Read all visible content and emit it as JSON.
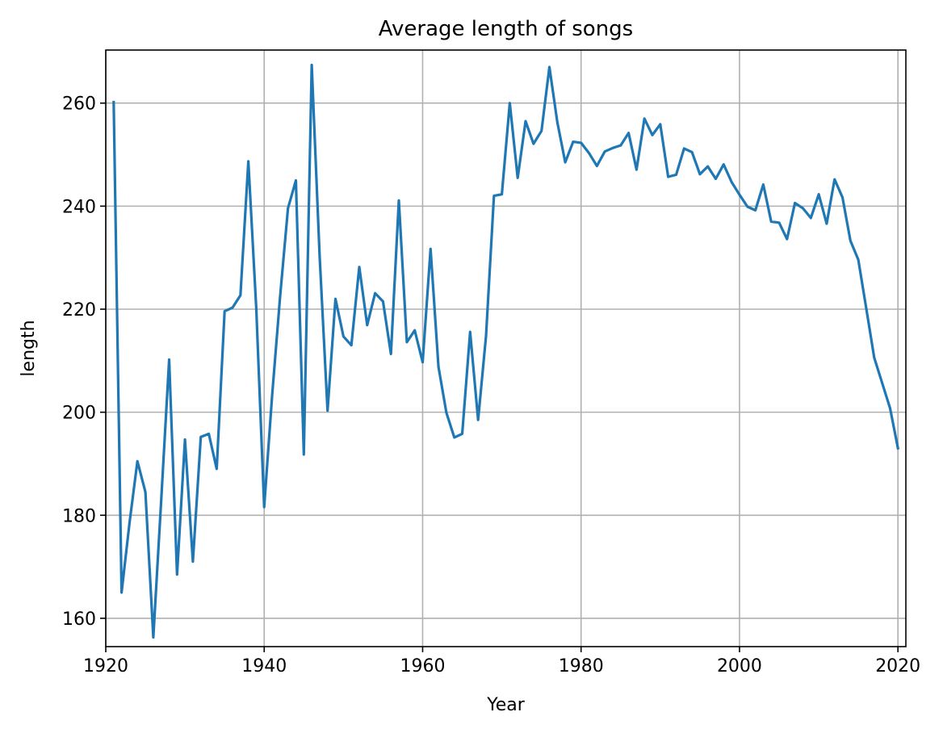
{
  "chart_data": {
    "type": "line",
    "title": "Average length of songs",
    "xlabel": "Year",
    "ylabel": "length",
    "xlim": [
      1920,
      2021
    ],
    "ylim": [
      154.5,
      270.3
    ],
    "xticks": [
      1920,
      1940,
      1960,
      1980,
      2000,
      2020
    ],
    "yticks": [
      160,
      180,
      200,
      220,
      240,
      260
    ],
    "grid": true,
    "legend": "none",
    "colors": {
      "line": "#1f77b4",
      "grid": "#b0b0b0",
      "axes": "#000000"
    },
    "series": [
      {
        "x": [
          1921,
          1922,
          1923,
          1924,
          1925,
          1926,
          1927,
          1928,
          1929,
          1930,
          1931,
          1932,
          1933,
          1934,
          1935,
          1936,
          1937,
          1938,
          1939,
          1940,
          1941,
          1942,
          1943,
          1944,
          1945,
          1946,
          1947,
          1948,
          1949,
          1950,
          1951,
          1952,
          1953,
          1954,
          1955,
          1956,
          1957,
          1958,
          1959,
          1960,
          1961,
          1962,
          1963,
          1964,
          1965,
          1966,
          1967,
          1968,
          1969,
          1970,
          1971,
          1972,
          1973,
          1974,
          1975,
          1976,
          1977,
          1978,
          1979,
          1980,
          1981,
          1982,
          1983,
          1984,
          1985,
          1986,
          1987,
          1988,
          1989,
          1990,
          1991,
          1992,
          1993,
          1994,
          1995,
          1996,
          1997,
          1998,
          1999,
          2000,
          2001,
          2002,
          2003,
          2004,
          2005,
          2006,
          2007,
          2008,
          2009,
          2010,
          2011,
          2012,
          2013,
          2014,
          2015,
          2016,
          2017,
          2018,
          2019,
          2020
        ],
        "values": [
          260.2,
          165.0,
          178.5,
          190.5,
          184.5,
          156.3,
          183.0,
          210.2,
          168.5,
          194.7,
          171.0,
          195.2,
          195.8,
          189.0,
          219.6,
          220.3,
          222.7,
          248.7,
          220.2,
          181.6,
          203.1,
          222.4,
          239.6,
          245.0,
          191.8,
          267.4,
          230.3,
          200.3,
          222.0,
          214.7,
          213.0,
          228.2,
          216.9,
          223.1,
          221.5,
          211.3,
          241.1,
          213.6,
          215.9,
          209.7,
          231.7,
          208.8,
          199.9,
          195.1,
          195.8,
          215.6,
          198.5,
          214.8,
          242.0,
          242.3,
          260.0,
          245.5,
          256.5,
          252.1,
          254.6,
          267.0,
          256.3,
          248.5,
          252.5,
          252.3,
          250.3,
          247.8,
          250.6,
          251.3,
          251.8,
          254.2,
          247.1,
          257.0,
          253.8,
          255.9,
          245.7,
          246.1,
          251.2,
          250.5,
          246.2,
          247.7,
          245.3,
          248.1,
          244.7,
          242.2,
          239.9,
          239.2,
          244.2,
          237.0,
          236.8,
          233.6,
          240.6,
          239.6,
          237.7,
          242.3,
          236.6,
          245.2,
          241.7,
          233.3,
          229.6,
          220.2,
          210.6,
          205.7,
          200.8,
          193.0
        ]
      }
    ]
  }
}
